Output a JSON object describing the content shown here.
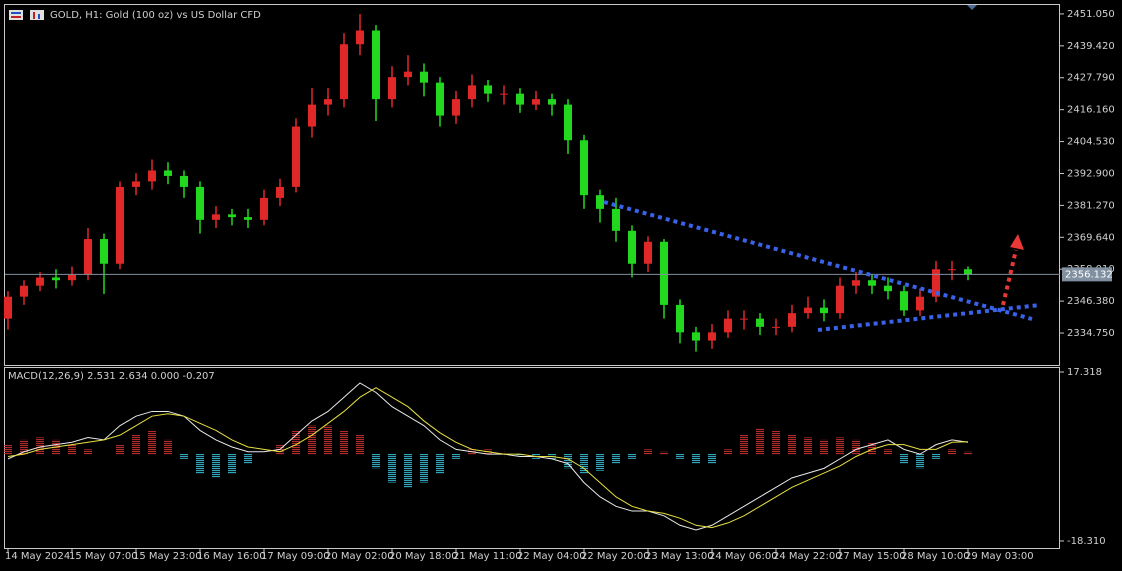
{
  "chart_data": [
    {
      "type": "candlestick",
      "title": "GOLD, H1:  Gold (100 oz) vs US Dollar CFD",
      "categories": [
        "14 May 2024",
        null,
        null,
        null,
        "15 May 07:00",
        null,
        null,
        null,
        "15 May 23:00",
        null,
        null,
        null,
        "16 May 16:00",
        null,
        null,
        null,
        "17 May 09:00",
        null,
        null,
        null,
        "20 May 02:00",
        null,
        null,
        null,
        "20 May 18:00",
        null,
        null,
        null,
        "21 May 11:00",
        null,
        null,
        null,
        "22 May 04:00",
        null,
        null,
        null,
        "22 May 20:00",
        null,
        null,
        null,
        "23 May 13:00",
        null,
        null,
        null,
        "24 May 06:00",
        null,
        null,
        null,
        "24 May 22:00",
        null,
        null,
        null,
        "27 May 15:00",
        null,
        null,
        null,
        "28 May 10:00",
        null,
        null,
        null,
        "29 May 03:00"
      ],
      "open": [
        2340,
        2348,
        2352,
        2355,
        2354,
        2356,
        2369,
        2360,
        2388,
        2390,
        2394,
        2392,
        2388,
        2376,
        2378,
        2377,
        2376,
        2384,
        2388,
        2410,
        2418,
        2420,
        2440,
        2445,
        2420,
        2428,
        2430,
        2426,
        2414,
        2420,
        2425,
        2422,
        2422,
        2418,
        2420,
        2418,
        2405,
        2385,
        2380,
        2372,
        2360,
        2368,
        2345,
        2335,
        2332,
        2335,
        2340,
        2340,
        2337,
        2337,
        2342,
        2344,
        2342,
        2352,
        2354,
        2352,
        2350,
        2343,
        2348,
        2358,
        2358
      ],
      "high": [
        2350,
        2354,
        2357,
        2358,
        2359,
        2373,
        2371,
        2390,
        2393,
        2398,
        2397,
        2394,
        2390,
        2381,
        2380,
        2380,
        2387,
        2391,
        2413,
        2424,
        2424,
        2444,
        2451,
        2447,
        2432,
        2436,
        2433,
        2428,
        2423,
        2429,
        2427,
        2425,
        2424,
        2423,
        2422,
        2420,
        2407,
        2387,
        2384,
        2374,
        2370,
        2369,
        2347,
        2337,
        2338,
        2343,
        2343,
        2342,
        2340,
        2345,
        2348,
        2347,
        2355,
        2357,
        2356,
        2355,
        2352,
        2351,
        2361,
        2361,
        2359
      ],
      "low": [
        2336,
        2345,
        2350,
        2351,
        2352,
        2354,
        2349,
        2358,
        2385,
        2387,
        2389,
        2384,
        2371,
        2373,
        2374,
        2373,
        2374,
        2381,
        2386,
        2406,
        2414,
        2417,
        2436,
        2412,
        2417,
        2425,
        2421,
        2410,
        2411,
        2417,
        2419,
        2418,
        2415,
        2416,
        2414,
        2400,
        2380,
        2375,
        2368,
        2355,
        2357,
        2340,
        2331,
        2328,
        2329,
        2333,
        2336,
        2334,
        2334,
        2335,
        2340,
        2339,
        2340,
        2349,
        2349,
        2347,
        2341,
        2341,
        2346,
        2354,
        2354
      ],
      "close": [
        2348,
        2352,
        2355,
        2354,
        2356,
        2369,
        2360,
        2388,
        2390,
        2394,
        2392,
        2388,
        2376,
        2378,
        2377,
        2376,
        2384,
        2388,
        2410,
        2418,
        2420,
        2440,
        2445,
        2420,
        2428,
        2430,
        2426,
        2414,
        2420,
        2425,
        2422,
        2422,
        2418,
        2420,
        2418,
        2405,
        2385,
        2380,
        2372,
        2360,
        2368,
        2345,
        2335,
        2332,
        2335,
        2340,
        2340,
        2337,
        2337,
        2342,
        2344,
        2342,
        2352,
        2354,
        2352,
        2350,
        2343,
        2348,
        2358,
        2358,
        2356
      ],
      "up_color": "#e02828",
      "down_color": "#22d81e",
      "current_price": 2356.132,
      "ylim": [
        2323.1,
        2454.3
      ],
      "yticks": [
        {
          "value": 2451.05,
          "label": "2451.050"
        },
        {
          "value": 2439.42,
          "label": "2439.420"
        },
        {
          "value": 2427.79,
          "label": "2427.790"
        },
        {
          "value": 2416.16,
          "label": "2416.160"
        },
        {
          "value": 2404.53,
          "label": "2404.530"
        },
        {
          "value": 2392.9,
          "label": "2392.900"
        },
        {
          "value": 2381.27,
          "label": "2381.270"
        },
        {
          "value": 2369.64,
          "label": "2369.640"
        },
        {
          "value": 2358.01,
          "label": "2358.010"
        },
        {
          "value": 2346.38,
          "label": "2346.380"
        },
        {
          "value": 2334.75,
          "label": "2334.750"
        }
      ]
    },
    {
      "type": "macd",
      "title": "MACD(12,26,9) 2.531 2.634 0.000 -0.207",
      "series": [
        {
          "name": "Histogram",
          "kind": "bar",
          "pos_color": "#c83232",
          "neg_color": "#3cbcd4",
          "values": [
            2,
            3,
            3.5,
            3,
            2,
            1,
            0,
            2,
            4,
            5,
            3,
            -1,
            -4,
            -5,
            -4,
            -2,
            0,
            2,
            5,
            6,
            6,
            5,
            4,
            -3,
            -6,
            -7,
            -6,
            -4,
            -1,
            1,
            1,
            0,
            -0.5,
            -1,
            -1,
            -3,
            -4,
            -3.5,
            -2,
            -1,
            1,
            0.5,
            -1,
            -2,
            -2,
            1,
            4,
            5.5,
            5,
            4,
            3.5,
            3,
            3.5,
            3,
            2.5,
            1,
            -2,
            -3,
            -1,
            1,
            0.5
          ]
        },
        {
          "name": "MACD",
          "kind": "line",
          "color": "#e8e8e8",
          "values": [
            -1,
            0.5,
            1.5,
            2,
            2.5,
            3.5,
            3,
            6,
            8,
            9,
            9,
            8,
            5,
            3,
            1.5,
            0.5,
            0.5,
            1,
            4,
            7,
            9,
            12,
            15,
            13,
            10,
            8,
            6,
            3,
            1,
            0.5,
            0,
            0,
            -0.5,
            -0.5,
            -1,
            -2,
            -6,
            -9,
            -11,
            -12,
            -12,
            -13,
            -15,
            -16,
            -15,
            -13,
            -11,
            -9,
            -7,
            -5,
            -4,
            -3,
            -1,
            1,
            2,
            3,
            1,
            0,
            2,
            3,
            2.5
          ]
        },
        {
          "name": "Signal",
          "kind": "line",
          "color": "#e8e040",
          "values": [
            -0.5,
            0,
            1,
            1.5,
            2,
            2.5,
            3,
            4,
            6,
            8,
            8.5,
            8,
            6.5,
            5,
            3,
            1.5,
            1,
            0.5,
            2,
            4,
            6.5,
            9,
            12,
            14,
            12,
            10,
            7,
            4.5,
            2.5,
            1,
            0.5,
            0,
            0,
            -0.5,
            -0.5,
            -1,
            -3,
            -6,
            -9,
            -11,
            -12,
            -12.5,
            -13.5,
            -15,
            -15.5,
            -14.5,
            -13,
            -11,
            -9,
            -7,
            -5.5,
            -4,
            -2.5,
            -0.5,
            1,
            2,
            2,
            1,
            1,
            2.5,
            2.6
          ]
        }
      ],
      "ylim": [
        -19.79,
        18.37
      ],
      "yticks": [
        {
          "value": 17.318,
          "label": "17.318"
        },
        {
          "value": -18.31,
          "label": "-18.310"
        }
      ]
    }
  ]
}
